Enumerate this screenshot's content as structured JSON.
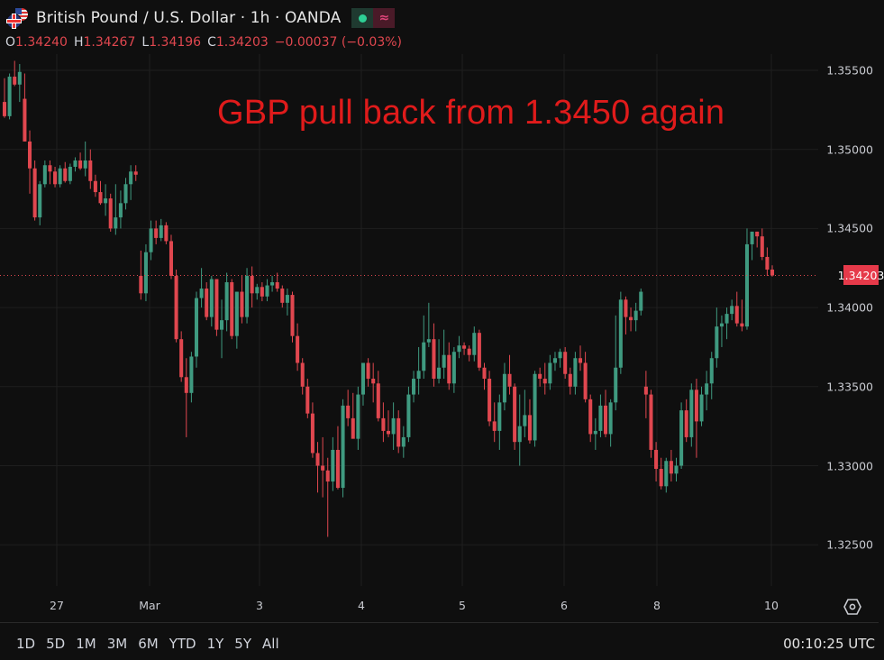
{
  "header": {
    "symbol": "British Pound / U.S. Dollar · 1h · OANDA",
    "status_live_icon": "green-dot-icon",
    "status_wave_icon": "approx-wave-icon",
    "ohlc": {
      "open_label": "O",
      "open": "1.34240",
      "high_label": "H",
      "high": "1.34267",
      "low_label": "L",
      "low": "1.34196",
      "close_label": "C",
      "close": "1.34203",
      "change": "−0.00037 (−0.03%)"
    }
  },
  "annotation": "GBP pull back from 1.3450 again",
  "current_price": "1.34203",
  "footer": {
    "ranges": [
      "1D",
      "5D",
      "1M",
      "3M",
      "6M",
      "YTD",
      "1Y",
      "5Y",
      "All"
    ],
    "clock": "00:10:25 UTC"
  },
  "colors": {
    "background": "#0f0f0f",
    "up": "#3f9a80",
    "down": "#e0474f",
    "price_tag": "#e63a4a",
    "annotation": "#e01b1b",
    "grid": "#1f1f1f"
  },
  "chart_data": {
    "type": "candlestick",
    "title": "British Pound / U.S. Dollar · 1h · OANDA",
    "annotation": "GBP pull back from 1.3450 again",
    "xlabel": "",
    "ylabel": "",
    "ylim": [
      1.3218,
      1.3565
    ],
    "yticks": [
      "1.35500",
      "1.35000",
      "1.34500",
      "1.34000",
      "1.33500",
      "1.33000",
      "1.32500"
    ],
    "xticks": [
      {
        "label": "27",
        "x": 63
      },
      {
        "label": "Mar",
        "x": 166
      },
      {
        "label": "3",
        "x": 288
      },
      {
        "label": "4",
        "x": 401
      },
      {
        "label": "5",
        "x": 513
      },
      {
        "label": "6",
        "x": 626
      },
      {
        "label": "8",
        "x": 729
      },
      {
        "label": "10",
        "x": 856
      }
    ],
    "last_price": 1.34203,
    "grid": true,
    "ohlc": [
      [
        1.353,
        1.3545,
        1.352,
        1.3521
      ],
      [
        1.3521,
        1.3548,
        1.3519,
        1.3546
      ],
      [
        1.3546,
        1.3556,
        1.354,
        1.3541
      ],
      [
        1.3541,
        1.3554,
        1.353,
        1.3549
      ],
      [
        1.3532,
        1.3548,
        1.3505,
        1.3505
      ],
      [
        1.3505,
        1.3512,
        1.3472,
        1.3488
      ],
      [
        1.3488,
        1.3493,
        1.3455,
        1.3457
      ],
      [
        1.3457,
        1.348,
        1.3452,
        1.3478
      ],
      [
        1.3478,
        1.3493,
        1.3476,
        1.349
      ],
      [
        1.349,
        1.3493,
        1.3478,
        1.3486
      ],
      [
        1.3486,
        1.3489,
        1.3476,
        1.3478
      ],
      [
        1.3478,
        1.349,
        1.3476,
        1.3488
      ],
      [
        1.3488,
        1.3492,
        1.3479,
        1.348
      ],
      [
        1.348,
        1.3491,
        1.3478,
        1.3489
      ],
      [
        1.3489,
        1.3495,
        1.3486,
        1.3493
      ],
      [
        1.3493,
        1.3498,
        1.3487,
        1.3488
      ],
      [
        1.3488,
        1.3505,
        1.3483,
        1.3493
      ],
      [
        1.3493,
        1.35,
        1.3475,
        1.348
      ],
      [
        1.348,
        1.3484,
        1.347,
        1.3473
      ],
      [
        1.3473,
        1.348,
        1.3465,
        1.3466
      ],
      [
        1.3466,
        1.3478,
        1.3458,
        1.3469
      ],
      [
        1.3469,
        1.3472,
        1.3448,
        1.345
      ],
      [
        1.345,
        1.3478,
        1.3446,
        1.3457
      ],
      [
        1.3457,
        1.3474,
        1.345,
        1.3466
      ],
      [
        1.3466,
        1.3482,
        1.3462,
        1.3478
      ],
      [
        1.3478,
        1.349,
        1.3468,
        1.3486
      ],
      [
        1.3486,
        1.349,
        1.348,
        1.3484
      ],
      [
        1.342,
        1.3436,
        1.3405,
        1.3409
      ],
      [
        1.3409,
        1.344,
        1.3404,
        1.3435
      ],
      [
        1.3435,
        1.3455,
        1.343,
        1.345
      ],
      [
        1.345,
        1.3455,
        1.344,
        1.3444
      ],
      [
        1.3444,
        1.3456,
        1.3442,
        1.3452
      ],
      [
        1.3452,
        1.3454,
        1.344,
        1.3442
      ],
      [
        1.3442,
        1.3446,
        1.3418,
        1.342
      ],
      [
        1.342,
        1.3424,
        1.3378,
        1.338
      ],
      [
        1.338,
        1.3385,
        1.3353,
        1.3356
      ],
      [
        1.3356,
        1.3368,
        1.3318,
        1.3346
      ],
      [
        1.3346,
        1.3372,
        1.334,
        1.3369
      ],
      [
        1.3369,
        1.341,
        1.3362,
        1.3406
      ],
      [
        1.3406,
        1.3425,
        1.34,
        1.3412
      ],
      [
        1.3412,
        1.3416,
        1.3392,
        1.3394
      ],
      [
        1.3394,
        1.342,
        1.3388,
        1.3418
      ],
      [
        1.3418,
        1.3418,
        1.3382,
        1.3386
      ],
      [
        1.3386,
        1.3405,
        1.3368,
        1.3392
      ],
      [
        1.3392,
        1.3422,
        1.3385,
        1.3416
      ],
      [
        1.3416,
        1.3418,
        1.338,
        1.3382
      ],
      [
        1.3382,
        1.341,
        1.3374,
        1.341
      ],
      [
        1.341,
        1.342,
        1.339,
        1.3394
      ],
      [
        1.3394,
        1.3425,
        1.339,
        1.342
      ],
      [
        1.342,
        1.3426,
        1.34,
        1.3409
      ],
      [
        1.3409,
        1.3415,
        1.3405,
        1.3413
      ],
      [
        1.3413,
        1.3416,
        1.3404,
        1.3407
      ],
      [
        1.3407,
        1.3418,
        1.3404,
        1.3414
      ],
      [
        1.3414,
        1.342,
        1.341,
        1.3416
      ],
      [
        1.3416,
        1.3422,
        1.341,
        1.3412
      ],
      [
        1.3412,
        1.3414,
        1.34,
        1.3403
      ],
      [
        1.3403,
        1.3412,
        1.3395,
        1.3408
      ],
      [
        1.3408,
        1.341,
        1.3378,
        1.3382
      ],
      [
        1.3382,
        1.339,
        1.336,
        1.3365
      ],
      [
        1.3365,
        1.3368,
        1.3345,
        1.335
      ],
      [
        1.335,
        1.3355,
        1.333,
        1.3333
      ],
      [
        1.3333,
        1.334,
        1.3305,
        1.3308
      ],
      [
        1.3308,
        1.3315,
        1.3283,
        1.33
      ],
      [
        1.33,
        1.3318,
        1.328,
        1.3297
      ],
      [
        1.3297,
        1.3305,
        1.3255,
        1.329
      ],
      [
        1.329,
        1.3318,
        1.3284,
        1.331
      ],
      [
        1.331,
        1.3325,
        1.3285,
        1.3286
      ],
      [
        1.3286,
        1.3342,
        1.328,
        1.3338
      ],
      [
        1.3338,
        1.3348,
        1.3325,
        1.333
      ],
      [
        1.333,
        1.3346,
        1.3318,
        1.3317
      ],
      [
        1.3317,
        1.335,
        1.331,
        1.3345
      ],
      [
        1.3345,
        1.336,
        1.3338,
        1.3365
      ],
      [
        1.3365,
        1.3368,
        1.335,
        1.3355
      ],
      [
        1.3355,
        1.3365,
        1.334,
        1.3352
      ],
      [
        1.3352,
        1.336,
        1.3328,
        1.333
      ],
      [
        1.333,
        1.334,
        1.3315,
        1.3322
      ],
      [
        1.3322,
        1.3335,
        1.3318,
        1.332
      ],
      [
        1.332,
        1.334,
        1.331,
        1.333
      ],
      [
        1.333,
        1.3335,
        1.3308,
        1.3312
      ],
      [
        1.3312,
        1.3325,
        1.3305,
        1.3318
      ],
      [
        1.3318,
        1.335,
        1.3315,
        1.3345
      ],
      [
        1.3345,
        1.336,
        1.334,
        1.3355
      ],
      [
        1.3355,
        1.3375,
        1.3345,
        1.336
      ],
      [
        1.336,
        1.3395,
        1.3355,
        1.3378
      ],
      [
        1.3378,
        1.3403,
        1.3375,
        1.338
      ],
      [
        1.338,
        1.339,
        1.335,
        1.3355
      ],
      [
        1.3355,
        1.338,
        1.3352,
        1.3362
      ],
      [
        1.3362,
        1.3386,
        1.3355,
        1.337
      ],
      [
        1.337,
        1.3378,
        1.3348,
        1.3352
      ],
      [
        1.3352,
        1.3375,
        1.3346,
        1.3372
      ],
      [
        1.3372,
        1.3382,
        1.3368,
        1.3376
      ],
      [
        1.3376,
        1.3378,
        1.337,
        1.3374
      ],
      [
        1.3374,
        1.3376,
        1.3366,
        1.337
      ],
      [
        1.337,
        1.3388,
        1.3366,
        1.3384
      ],
      [
        1.3384,
        1.3386,
        1.336,
        1.3362
      ],
      [
        1.3362,
        1.3365,
        1.3348,
        1.3355
      ],
      [
        1.3355,
        1.336,
        1.3325,
        1.3328
      ],
      [
        1.3328,
        1.334,
        1.3315,
        1.3322
      ],
      [
        1.3322,
        1.3345,
        1.331,
        1.334
      ],
      [
        1.334,
        1.3365,
        1.3335,
        1.3358
      ],
      [
        1.3358,
        1.337,
        1.3345,
        1.335
      ],
      [
        1.335,
        1.3352,
        1.331,
        1.3315
      ],
      [
        1.3315,
        1.3345,
        1.33,
        1.3325
      ],
      [
        1.3325,
        1.3348,
        1.3318,
        1.3332
      ],
      [
        1.3332,
        1.3342,
        1.3314,
        1.3316
      ],
      [
        1.3316,
        1.336,
        1.3312,
        1.3358
      ],
      [
        1.3358,
        1.3362,
        1.335,
        1.3355
      ],
      [
        1.3355,
        1.3365,
        1.3345,
        1.3352
      ],
      [
        1.3352,
        1.337,
        1.3348,
        1.3365
      ],
      [
        1.3365,
        1.3372,
        1.336,
        1.3368
      ],
      [
        1.3368,
        1.3374,
        1.3362,
        1.3372
      ],
      [
        1.3372,
        1.3375,
        1.3355,
        1.3358
      ],
      [
        1.3358,
        1.3362,
        1.3345,
        1.335
      ],
      [
        1.335,
        1.3372,
        1.3345,
        1.3368
      ],
      [
        1.3368,
        1.3376,
        1.336,
        1.3365
      ],
      [
        1.3365,
        1.3372,
        1.334,
        1.3342
      ],
      [
        1.3342,
        1.3345,
        1.3315,
        1.332
      ],
      [
        1.332,
        1.333,
        1.331,
        1.3322
      ],
      [
        1.3322,
        1.3345,
        1.3318,
        1.3338
      ],
      [
        1.3338,
        1.3348,
        1.3318,
        1.332
      ],
      [
        1.332,
        1.3342,
        1.3312,
        1.334
      ],
      [
        1.334,
        1.3395,
        1.3335,
        1.3362
      ],
      [
        1.3362,
        1.341,
        1.3358,
        1.3405
      ],
      [
        1.3405,
        1.3407,
        1.3383,
        1.3394
      ],
      [
        1.3394,
        1.34,
        1.3385,
        1.3392
      ],
      [
        1.3392,
        1.3403,
        1.3385,
        1.3398
      ],
      [
        1.3398,
        1.3412,
        1.3395,
        1.341
      ],
      [
        1.335,
        1.336,
        1.333,
        1.3345
      ],
      [
        1.3345,
        1.3348,
        1.3305,
        1.331
      ],
      [
        1.331,
        1.3315,
        1.329,
        1.3298
      ],
      [
        1.3298,
        1.3305,
        1.3285,
        1.3287
      ],
      [
        1.3287,
        1.3305,
        1.3283,
        1.3303
      ],
      [
        1.3303,
        1.331,
        1.329,
        1.3295
      ],
      [
        1.3295,
        1.3305,
        1.329,
        1.33
      ],
      [
        1.33,
        1.334,
        1.3298,
        1.3335
      ],
      [
        1.3335,
        1.3342,
        1.3315,
        1.3318
      ],
      [
        1.3318,
        1.3352,
        1.3312,
        1.3348
      ],
      [
        1.3348,
        1.3355,
        1.3305,
        1.3328
      ],
      [
        1.3328,
        1.335,
        1.3325,
        1.3345
      ],
      [
        1.3345,
        1.336,
        1.3335,
        1.3352
      ],
      [
        1.3352,
        1.3372,
        1.3342,
        1.3368
      ],
      [
        1.3368,
        1.34,
        1.3362,
        1.3388
      ],
      [
        1.3388,
        1.3395,
        1.3375,
        1.339
      ],
      [
        1.339,
        1.34,
        1.338,
        1.3396
      ],
      [
        1.3396,
        1.3405,
        1.3392,
        1.3401
      ],
      [
        1.3401,
        1.341,
        1.3388,
        1.339
      ],
      [
        1.339,
        1.3405,
        1.3385,
        1.3388
      ],
      [
        1.3388,
        1.345,
        1.3386,
        1.344
      ],
      [
        1.344,
        1.3448,
        1.343,
        1.3448
      ],
      [
        1.3448,
        1.3448,
        1.3438,
        1.3445
      ],
      [
        1.3445,
        1.345,
        1.343,
        1.3432
      ],
      [
        1.3432,
        1.3438,
        1.342,
        1.3424
      ],
      [
        1.3424,
        1.34267,
        1.34196,
        1.34203
      ]
    ]
  }
}
